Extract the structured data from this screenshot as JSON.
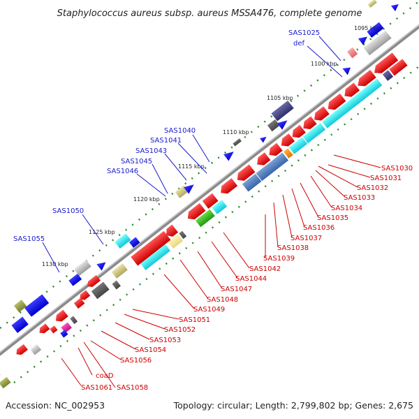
{
  "title": "Staphylococcus aureus subsp. aureus MSSA476, complete genome",
  "footer": {
    "accession": "Accession: NC_002953",
    "summary": "Topology: circular; Length: 2,799,802 bp; Genes: 2,675"
  },
  "kbp_ticks": [
    "1095 kbp",
    "1100 kbp",
    "1105 kbp",
    "1110 kbp",
    "1115 kbp",
    "1120 kbp",
    "1125 kbp",
    "1130 kbp"
  ],
  "genes_forward": [
    "SAS1025",
    "def",
    "SAS1040",
    "SAS1041",
    "SAS1043",
    "SAS1045",
    "SAS1046",
    "SAS1050",
    "SAS1055"
  ],
  "genes_reverse": [
    "SAS1030",
    "SAS1031",
    "SAS1032",
    "SAS1033",
    "SAS1034",
    "SAS1035",
    "SAS1036",
    "SAS1037",
    "SAS1038",
    "SAS1039",
    "SAS1042",
    "SAS1044",
    "SAS1047",
    "SAS1048",
    "SAS1049",
    "SAS1051",
    "SAS1052",
    "SAS1053",
    "SAS1054",
    "SAS1056",
    "coaD",
    "SAS1058",
    "SAS1061"
  ],
  "colors": {
    "forward_label": "#1a1acc",
    "reverse_label": "#cc0000",
    "backbone": "#8a8a8a"
  }
}
